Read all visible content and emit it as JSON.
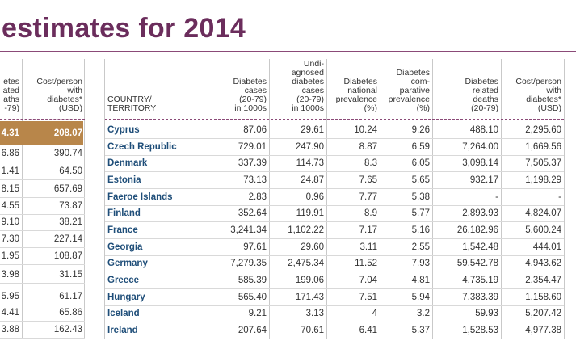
{
  "title": "estimates for 2014",
  "left_table": {
    "headers": {
      "col1": [
        "etes",
        "ated",
        "aths",
        "-79)"
      ],
      "col2": [
        "Cost/person",
        "with",
        "diabetes*",
        "(USD)"
      ]
    },
    "rows": [
      {
        "c1": "4.31",
        "c2": "208.07",
        "highlight": true
      },
      {
        "c1": "6.86",
        "c2": "390.74"
      },
      {
        "c1": "1.41",
        "c2": "64.50"
      },
      {
        "c1": "8.15",
        "c2": "657.69"
      },
      {
        "c1": "4.55",
        "c2": "73.87"
      },
      {
        "c1": "9.10",
        "c2": "38.21"
      },
      {
        "c1": "7.30",
        "c2": "227.14"
      },
      {
        "c1": "1.95",
        "c2": "108.87"
      },
      {
        "c1": "3.98",
        "c2": "31.15"
      },
      {
        "c1": "5.95",
        "c2": "61.17"
      },
      {
        "c1": "4.41",
        "c2": "65.86"
      },
      {
        "c1": "3.88",
        "c2": "162.43"
      }
    ]
  },
  "main_table": {
    "headers": {
      "country": [
        "COUNTRY/",
        "TERRITORY"
      ],
      "cases": [
        "Diabetes",
        "cases",
        "(20-79)",
        "in 1000s"
      ],
      "undiagnosed": [
        "Undi-",
        "agnosed",
        "diabetes",
        "cases",
        "(20-79)",
        "in 1000s"
      ],
      "national": [
        "Diabetes",
        "national",
        "prevalence",
        "(%)"
      ],
      "comparative": [
        "Diabetes",
        "com-",
        "parative",
        "prevalence",
        "(%)"
      ],
      "deaths": [
        "Diabetes",
        "related",
        "deaths",
        "(20-79)"
      ],
      "cost": [
        "Cost/person",
        "with",
        "diabetes*",
        "(USD)"
      ]
    },
    "rows": [
      {
        "country": "Cyprus",
        "cases": "87.06",
        "undiagnosed": "29.61",
        "national": "10.24",
        "comparative": "9.26",
        "deaths": "488.10",
        "cost": "2,295.60"
      },
      {
        "country": "Czech Republic",
        "cases": "729.01",
        "undiagnosed": "247.90",
        "national": "8.87",
        "comparative": "6.59",
        "deaths": "7,264.00",
        "cost": "1,669.56"
      },
      {
        "country": "Denmark",
        "cases": "337.39",
        "undiagnosed": "114.73",
        "national": "8.3",
        "comparative": "6.05",
        "deaths": "3,098.14",
        "cost": "7,505.37"
      },
      {
        "country": "Estonia",
        "cases": "73.13",
        "undiagnosed": "24.87",
        "national": "7.65",
        "comparative": "5.65",
        "deaths": "932.17",
        "cost": "1,198.29"
      },
      {
        "country": "Faeroe Islands",
        "cases": "2.83",
        "undiagnosed": "0.96",
        "national": "7.77",
        "comparative": "5.38",
        "deaths": "-",
        "cost": "-"
      },
      {
        "country": "Finland",
        "cases": "352.64",
        "undiagnosed": "119.91",
        "national": "8.9",
        "comparative": "5.77",
        "deaths": "2,893.93",
        "cost": "4,824.07"
      },
      {
        "country": "France",
        "cases": "3,241.34",
        "undiagnosed": "1,102.22",
        "national": "7.17",
        "comparative": "5.16",
        "deaths": "26,182.96",
        "cost": "5,600.24"
      },
      {
        "country": "Georgia",
        "cases": "97.61",
        "undiagnosed": "29.60",
        "national": "3.11",
        "comparative": "2.55",
        "deaths": "1,542.48",
        "cost": "444.01"
      },
      {
        "country": "Germany",
        "cases": "7,279.35",
        "undiagnosed": "2,475.34",
        "national": "11.52",
        "comparative": "7.93",
        "deaths": "59,542.78",
        "cost": "4,943.62"
      },
      {
        "country": "Greece",
        "cases": "585.39",
        "undiagnosed": "199.06",
        "national": "7.04",
        "comparative": "4.81",
        "deaths": "4,735.19",
        "cost": "2,354.47"
      },
      {
        "country": "Hungary",
        "cases": "565.40",
        "undiagnosed": "171.43",
        "national": "7.51",
        "comparative": "5.94",
        "deaths": "7,383.39",
        "cost": "1,158.60"
      },
      {
        "country": "Iceland",
        "cases": "9.21",
        "undiagnosed": "3.13",
        "national": "4",
        "comparative": "3.2",
        "deaths": "59.93",
        "cost": "5,207.42"
      },
      {
        "country": "Ireland",
        "cases": "207.64",
        "undiagnosed": "70.61",
        "national": "6.41",
        "comparative": "5.37",
        "deaths": "1,528.53",
        "cost": "4,977.38"
      }
    ]
  }
}
